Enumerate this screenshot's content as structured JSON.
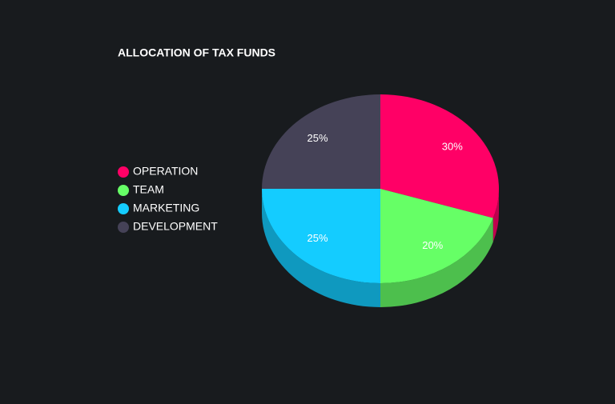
{
  "chart_data": {
    "type": "pie",
    "title": "ALLOCATION OF TAX FUNDS",
    "categories": [
      "OPERATION",
      "TEAM",
      "MARKETING",
      "DEVELOPMENT"
    ],
    "values": [
      30,
      20,
      25,
      25
    ],
    "value_labels": [
      "30%",
      "20%",
      "25%",
      "25%"
    ],
    "colors": [
      "#ff0066",
      "#66ff66",
      "#14ccff",
      "#454257"
    ],
    "legend": "left"
  }
}
